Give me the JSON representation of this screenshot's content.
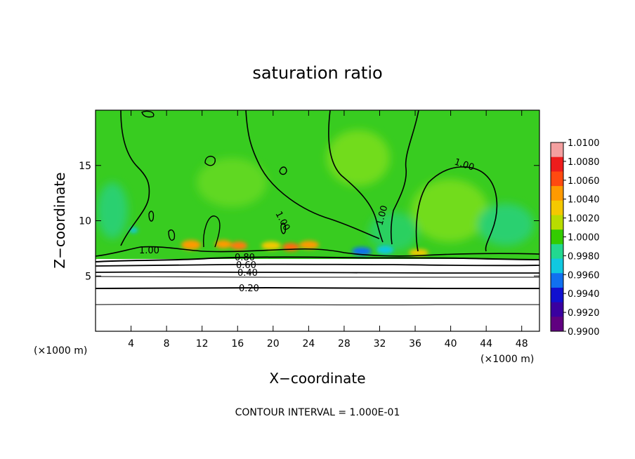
{
  "chart_data": {
    "type": "heatmap",
    "title": "saturation ratio",
    "xlabel": "X−coordinate",
    "ylabel": "Z−coordinate",
    "x_unit": "(×1000 m)",
    "y_unit": "(×1000 m)",
    "xlim": [
      0,
      50
    ],
    "ylim": [
      0,
      20
    ],
    "x_ticks": [
      4,
      8,
      12,
      16,
      20,
      24,
      28,
      32,
      36,
      40,
      44,
      48
    ],
    "y_ticks": [
      5,
      10,
      15
    ],
    "colorbar": {
      "min": 0.99,
      "max": 1.01,
      "tick_labels": [
        "1.0100",
        "1.0080",
        "1.0060",
        "1.0040",
        "1.0020",
        "1.0000",
        "0.9980",
        "0.9960",
        "0.9940",
        "0.9920",
        "0.9900"
      ],
      "colors": [
        "#f4a0a0",
        "#ee1c1c",
        "#ff4a10",
        "#ff9a00",
        "#f4c800",
        "#b8dc00",
        "#33cc00",
        "#22d890",
        "#10c8e0",
        "#1070f0",
        "#1010d0",
        "#3a00a0",
        "#600080"
      ]
    },
    "contour_interval_note": "CONTOUR INTERVAL = 1.000E-01",
    "contour_labels": [
      "1.00",
      "1.00",
      "1.00",
      "1.00",
      "0.80",
      "0.60",
      "0.40",
      "0.20"
    ],
    "notes": "Field near 1.0000 (green) above ~7 km; saturation ratio decreases below ~7 km with black contours 0.20–0.80."
  }
}
